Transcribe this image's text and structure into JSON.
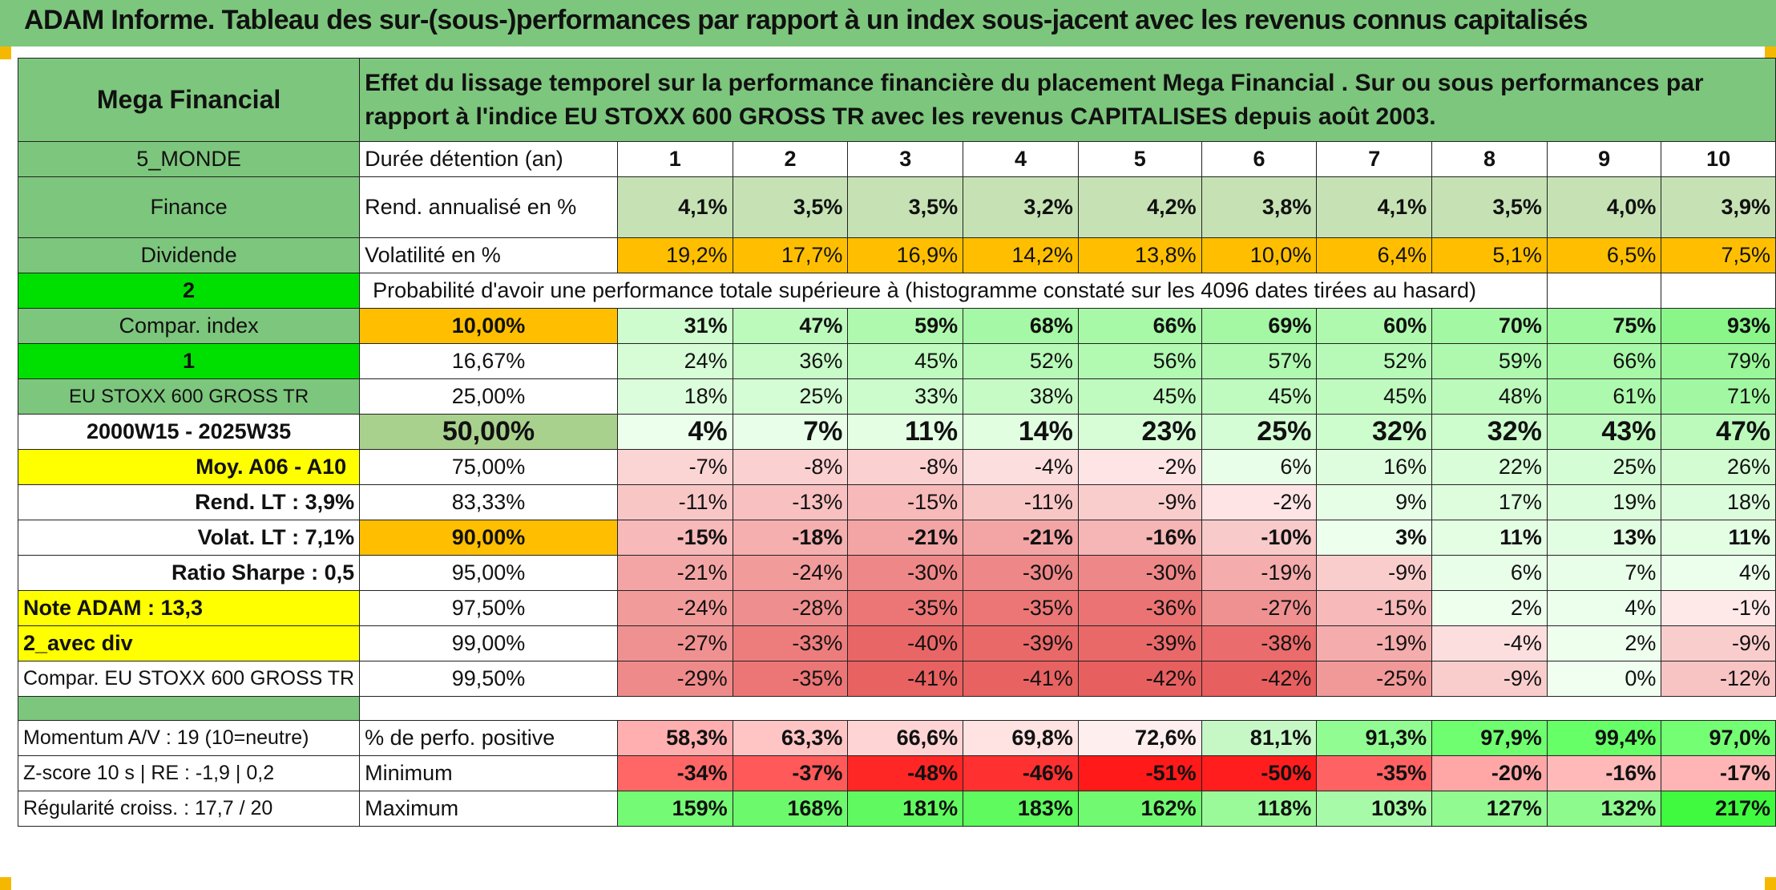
{
  "title": "ADAM Informe. Tableau des sur-(sous-)performances par rapport à un index sous-jacent avec les revenus connus capitalisés",
  "header": {
    "fund": "Mega Financial",
    "description": "Effet du lissage temporel sur la performance financière du placement Mega Financial . Sur ou sous performances par rapport à l'indice EU STOXX 600 GROSS TR avec les revenus CAPITALISES depuis août 2003."
  },
  "left": {
    "monde": "5_MONDE",
    "finance": "Finance",
    "dividende": "Dividende",
    "two": "2",
    "compar_index": "Compar. index",
    "one": "1",
    "index_name": "EU STOXX 600 GROSS TR",
    "period": "2000W15 - 2025W35",
    "moy": "Moy. A06 - A10",
    "rend_lt": "Rend. LT :   3,9%",
    "volat_lt": "Volat. LT :   7,1%",
    "sharpe": "Ratio Sharpe :   0,5",
    "note": "Note ADAM : 13,3",
    "avec_div": "2_avec div",
    "compar_full": "Compar. EU STOXX 600 GROSS TR",
    "momentum": "Momentum A/V : 19 (10=neutre)",
    "zscore": "Z-score 10 s | RE : -1,9 | 0,2",
    "regularite": "Régularité croiss. : 17,7 / 20"
  },
  "labels": {
    "duree": "Durée détention (an)",
    "rend": "Rend. annualisé en %",
    "volat": "Volatilité en %",
    "proba": "Probabilité d'avoir une performance totale supérieure à (histogramme constaté sur les 4096 dates tirées au hasard)",
    "positive": "% de perfo. positive",
    "minimum": "Minimum",
    "maximum": "Maximum"
  },
  "years": [
    "1",
    "2",
    "3",
    "4",
    "5",
    "6",
    "7",
    "8",
    "9",
    "10"
  ],
  "rend": [
    "4,1%",
    "3,5%",
    "3,5%",
    "3,2%",
    "4,2%",
    "3,8%",
    "4,1%",
    "3,5%",
    "4,0%",
    "3,9%"
  ],
  "volat": [
    "19,2%",
    "17,7%",
    "16,9%",
    "14,2%",
    "13,8%",
    "10,0%",
    "6,4%",
    "5,1%",
    "6,5%",
    "7,5%"
  ],
  "prob_rows": [
    {
      "threshold": "10,00%",
      "bold": true,
      "vals": [
        "31%",
        "47%",
        "59%",
        "68%",
        "66%",
        "69%",
        "60%",
        "70%",
        "75%",
        "93%"
      ]
    },
    {
      "threshold": "16,67%",
      "bold": false,
      "vals": [
        "24%",
        "36%",
        "45%",
        "52%",
        "56%",
        "57%",
        "52%",
        "59%",
        "66%",
        "79%"
      ]
    },
    {
      "threshold": "25,00%",
      "bold": false,
      "vals": [
        "18%",
        "25%",
        "33%",
        "38%",
        "45%",
        "45%",
        "45%",
        "48%",
        "61%",
        "71%"
      ]
    },
    {
      "threshold": "50,00%",
      "bold": true,
      "vals": [
        "4%",
        "7%",
        "11%",
        "14%",
        "23%",
        "25%",
        "32%",
        "32%",
        "43%",
        "47%"
      ]
    },
    {
      "threshold": "75,00%",
      "bold": false,
      "vals": [
        "-7%",
        "-8%",
        "-8%",
        "-4%",
        "-2%",
        "6%",
        "16%",
        "22%",
        "25%",
        "26%"
      ]
    },
    {
      "threshold": "83,33%",
      "bold": false,
      "vals": [
        "-11%",
        "-13%",
        "-15%",
        "-11%",
        "-9%",
        "-2%",
        "9%",
        "17%",
        "19%",
        "18%"
      ]
    },
    {
      "threshold": "90,00%",
      "bold": true,
      "vals": [
        "-15%",
        "-18%",
        "-21%",
        "-21%",
        "-16%",
        "-10%",
        "3%",
        "11%",
        "13%",
        "11%"
      ]
    },
    {
      "threshold": "95,00%",
      "bold": false,
      "vals": [
        "-21%",
        "-24%",
        "-30%",
        "-30%",
        "-30%",
        "-19%",
        "-9%",
        "6%",
        "7%",
        "4%"
      ]
    },
    {
      "threshold": "97,50%",
      "bold": false,
      "vals": [
        "-24%",
        "-28%",
        "-35%",
        "-35%",
        "-36%",
        "-27%",
        "-15%",
        "2%",
        "4%",
        "-1%"
      ]
    },
    {
      "threshold": "99,00%",
      "bold": false,
      "vals": [
        "-27%",
        "-33%",
        "-40%",
        "-39%",
        "-39%",
        "-38%",
        "-19%",
        "-4%",
        "2%",
        "-9%"
      ]
    },
    {
      "threshold": "99,50%",
      "bold": false,
      "vals": [
        "-29%",
        "-35%",
        "-41%",
        "-41%",
        "-42%",
        "-42%",
        "-25%",
        "-9%",
        "0%",
        "-12%"
      ]
    }
  ],
  "positive": [
    "58,3%",
    "63,3%",
    "66,6%",
    "69,8%",
    "72,6%",
    "81,1%",
    "91,3%",
    "97,9%",
    "99,4%",
    "97,0%"
  ],
  "minimum": [
    "-34%",
    "-37%",
    "-48%",
    "-46%",
    "-51%",
    "-50%",
    "-35%",
    "-20%",
    "-16%",
    "-17%"
  ],
  "maximum": [
    "159%",
    "168%",
    "181%",
    "183%",
    "162%",
    "118%",
    "103%",
    "127%",
    "132%",
    "217%"
  ],
  "colors": {
    "header_green": "#7dc67d",
    "bright_green": "#00e000",
    "orange": "#ffbf00",
    "yellow": "#ffff00",
    "red_text": "#d01010"
  }
}
